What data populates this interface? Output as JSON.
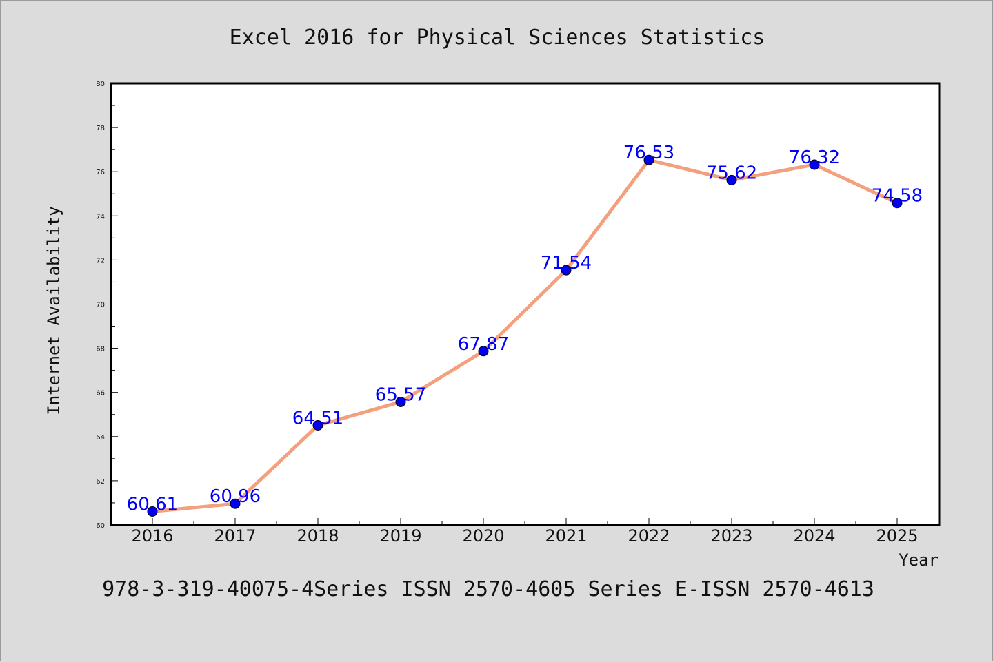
{
  "chart_data": {
    "type": "line",
    "title": "Excel 2016 for Physical Sciences Statistics",
    "xlabel": "Year",
    "ylabel": "Internet Availability",
    "categories": [
      "2016",
      "2017",
      "2018",
      "2019",
      "2020",
      "2021",
      "2022",
      "2023",
      "2024",
      "2025"
    ],
    "series": [
      {
        "values": [
          60.61,
          60.96,
          64.51,
          65.57,
          67.87,
          71.54,
          76.53,
          75.62,
          76.32,
          74.58
        ]
      }
    ],
    "data_labels": [
      "60.61",
      "60.96",
      "64.51",
      "65.57",
      "67.87",
      "71.54",
      "76.53",
      "75.62",
      "76.32",
      "74.58"
    ],
    "ylim": [
      60,
      80
    ],
    "yticks": [
      "60",
      "62",
      "64",
      "66",
      "68",
      "70",
      "72",
      "74",
      "76",
      "78",
      "80"
    ],
    "grid": false,
    "line_color": "#f4a07e",
    "marker_color": "#0000ee",
    "label_color": "#0000ff",
    "background": "#dcdcdc",
    "plot_background": "#ffffff"
  },
  "footer": "978-3-319-40075-4Series ISSN 2570-4605 Series E-ISSN 2570-4613"
}
